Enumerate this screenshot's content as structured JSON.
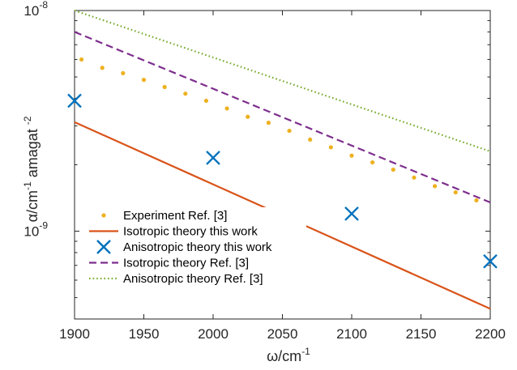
{
  "chart_data": {
    "type": "line",
    "title": "",
    "xlabel": "ω/cm",
    "xlabel_sup": "-1",
    "ylabel_parts": [
      "α/cm",
      "-1",
      " amagat ",
      "-2"
    ],
    "xscale": "linear",
    "yscale": "log",
    "xlim": [
      1900,
      2200
    ],
    "ylim": [
      4e-10,
      1e-08
    ],
    "xticks": [
      1900,
      1950,
      2000,
      2050,
      2100,
      2150,
      2200
    ],
    "xtick_labels": [
      "1900",
      "1950",
      "2000",
      "2050",
      "2100",
      "2150",
      "2200"
    ],
    "yticks_major": [
      1e-09,
      1e-08
    ],
    "ytick_labels": [
      {
        "base": "10",
        "exp": "-9"
      },
      {
        "base": "10",
        "exp": "-8"
      }
    ],
    "grid": false,
    "box": true,
    "legend_position": "bottom-left",
    "series": [
      {
        "name": "Experiment Ref. [3]",
        "style": "dots",
        "color": "#EDB120",
        "x": [
          1905,
          1920,
          1935,
          1950,
          1965,
          1980,
          1995,
          2010,
          2025,
          2040,
          2055,
          2070,
          2085,
          2100,
          2115,
          2130,
          2145,
          2160,
          2175,
          2190
        ],
        "y": [
          6e-09,
          5.5e-09,
          5.2e-09,
          4.85e-09,
          4.5e-09,
          4.2e-09,
          3.9e-09,
          3.6e-09,
          3.3e-09,
          3.1e-09,
          2.85e-09,
          2.6e-09,
          2.4e-09,
          2.2e-09,
          2.05e-09,
          1.9e-09,
          1.75e-09,
          1.6e-09,
          1.5e-09,
          1.38e-09
        ]
      },
      {
        "name": "Isotropic theory this work",
        "style": "solid",
        "color": "#D95319",
        "x": [
          1900,
          2200
        ],
        "y": [
          3.12e-09,
          4.45e-10
        ]
      },
      {
        "name": "Anisotropic theory this work",
        "style": "cross",
        "color": "#0072BD",
        "x": [
          1900,
          2000,
          2100,
          2200
        ],
        "y": [
          3.9e-09,
          2.15e-09,
          1.2e-09,
          7.3e-10
        ]
      },
      {
        "name": "Isotropic theory Ref. [3]",
        "style": "dashed",
        "color": "#7E2F8E",
        "x": [
          1900,
          2200
        ],
        "y": [
          8e-09,
          1.35e-09
        ]
      },
      {
        "name": "Anisotropic theory Ref. [3]",
        "style": "dotted",
        "color": "#77AC30",
        "x": [
          1900,
          2200
        ],
        "y": [
          1e-08,
          2.3e-09
        ]
      }
    ]
  }
}
